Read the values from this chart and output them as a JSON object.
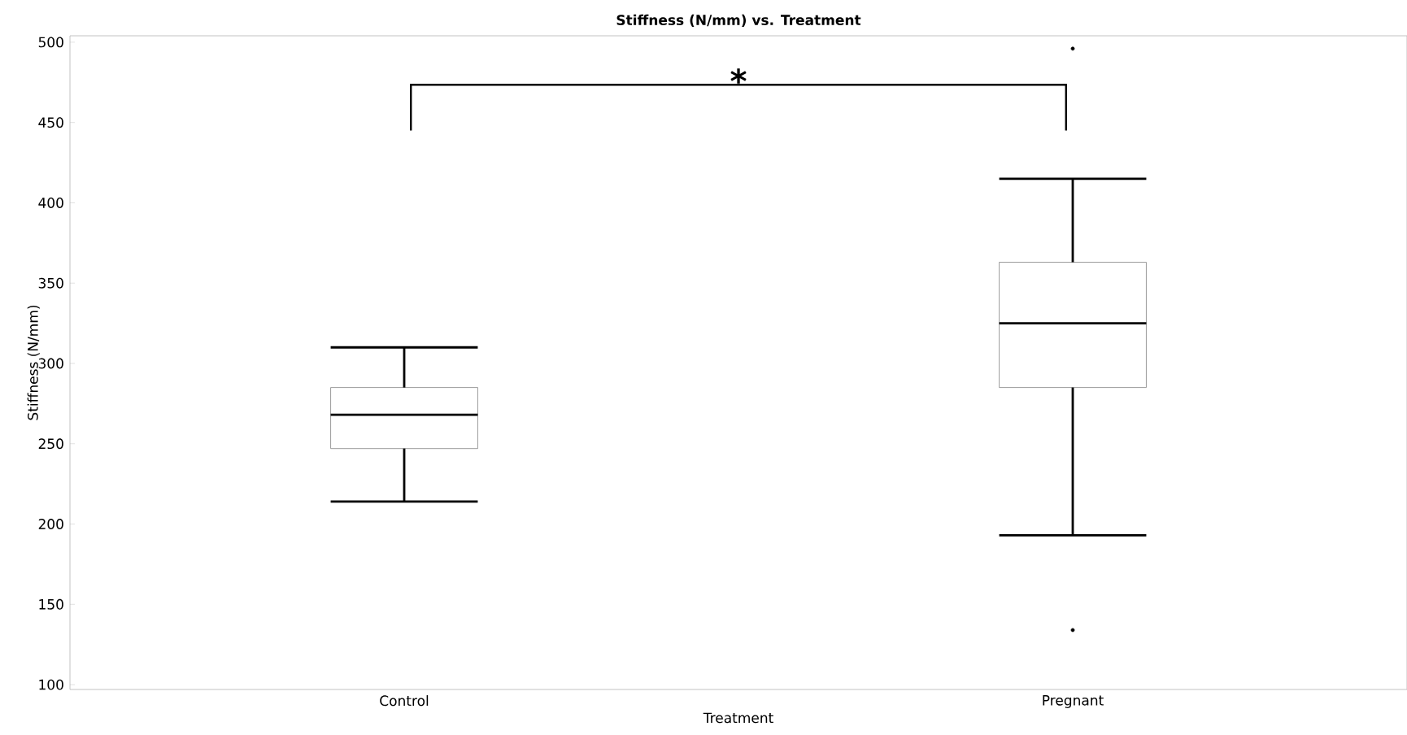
{
  "chart_data": {
    "type": "box",
    "title": "Stiffness (N/mm) vs. Treatment",
    "xlabel": "Treatment",
    "ylabel": "Stiffness (N/mm)",
    "categories": [
      "Control",
      "Pregnant"
    ],
    "boxes": [
      {
        "low": 214,
        "q1": 247,
        "median": 268,
        "q3": 285,
        "high": 310
      },
      {
        "low": 193,
        "q1": 285,
        "median": 325,
        "q3": 363,
        "high": 415,
        "outliers": [
          496,
          134
        ]
      }
    ],
    "ylim": [
      97,
      504
    ],
    "yticks": [
      100,
      150,
      200,
      250,
      300,
      350,
      400,
      450,
      500
    ],
    "annotations": [
      "*"
    ],
    "grid": false
  }
}
